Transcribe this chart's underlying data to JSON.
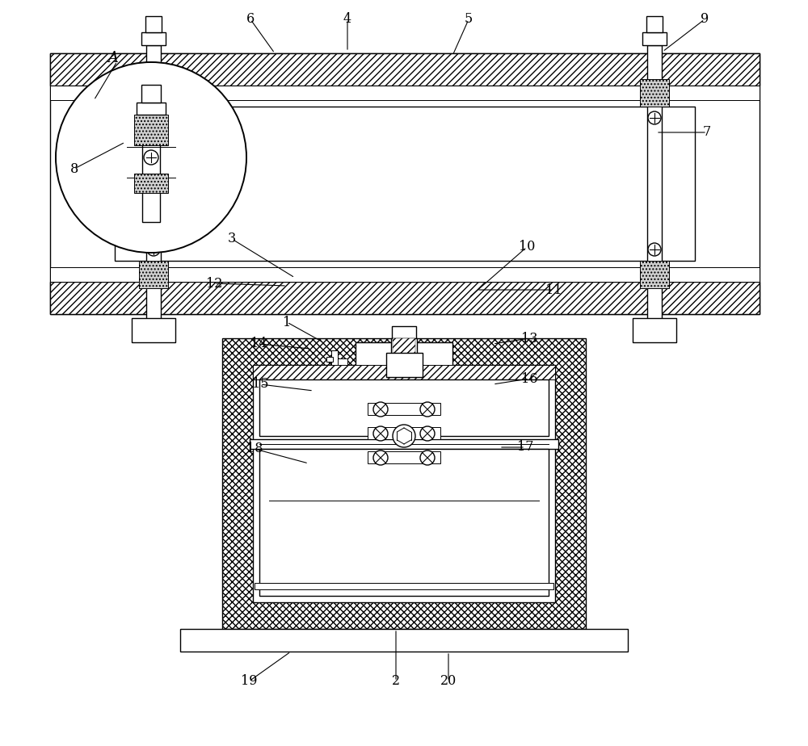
{
  "background_color": "#ffffff",
  "pipe_hatch": "////",
  "vvv_hatch": "vvvv",
  "dot_hatch": "....",
  "cross_hatch": "xxxx",
  "slash_hatch": "////",
  "labels_fontsize": 12,
  "lw": 1.0,
  "lw2": 0.7
}
